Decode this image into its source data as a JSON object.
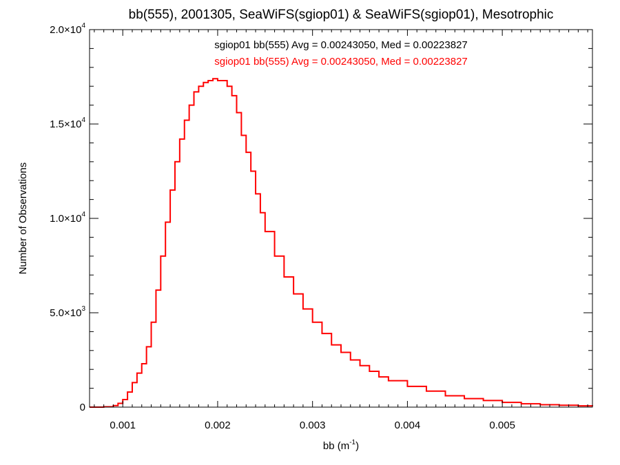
{
  "chart_data": {
    "type": "histogram",
    "title": "bb(555), 2001305, SeaWiFS(sgiop01) & SeaWiFS(sgiop01), Mesotrophic",
    "xlabel": {
      "base": "bb (m",
      "exp": "-1",
      "close": ")"
    },
    "ylabel": "Number of Observations",
    "xlim": [
      0.00065,
      0.00595
    ],
    "ylim": [
      0,
      20000
    ],
    "grid": false,
    "x_ticks": [
      {
        "value": 0.001,
        "label": "0.001"
      },
      {
        "value": 0.002,
        "label": "0.002"
      },
      {
        "value": 0.003,
        "label": "0.003"
      },
      {
        "value": 0.004,
        "label": "0.004"
      },
      {
        "value": 0.005,
        "label": "0.005"
      }
    ],
    "y_ticks": [
      {
        "value": 0,
        "mantissa": "0",
        "exp": ""
      },
      {
        "value": 5000,
        "mantissa": "5.0×10",
        "exp": "3"
      },
      {
        "value": 10000,
        "mantissa": "1.0×10",
        "exp": "4"
      },
      {
        "value": 15000,
        "mantissa": "1.5×10",
        "exp": "4"
      },
      {
        "value": 20000,
        "mantissa": "2.0×10",
        "exp": "4"
      }
    ],
    "legend": [
      {
        "text": "sgiop01 bb(555) Avg = 0.00243050, Med = 0.00223827",
        "color": "#000000"
      },
      {
        "text": "sgiop01 bb(555) Avg = 0.00243050, Med = 0.00223827",
        "color": "#ff0000"
      }
    ],
    "series": [
      {
        "color": "#ff0000",
        "x": [
          0.00065,
          0.0007,
          0.0008,
          0.0009,
          0.00095,
          0.001,
          0.00105,
          0.0011,
          0.00115,
          0.0012,
          0.00125,
          0.0013,
          0.00135,
          0.0014,
          0.00145,
          0.0015,
          0.00155,
          0.0016,
          0.00165,
          0.0017,
          0.00175,
          0.0018,
          0.00185,
          0.0019,
          0.00195,
          0.002,
          0.00205,
          0.0021,
          0.00215,
          0.0022,
          0.00225,
          0.0023,
          0.00235,
          0.0024,
          0.00245,
          0.0025,
          0.0026,
          0.0027,
          0.0028,
          0.0029,
          0.003,
          0.0031,
          0.0032,
          0.0033,
          0.0034,
          0.0035,
          0.0036,
          0.0037,
          0.0038,
          0.004,
          0.0042,
          0.0044,
          0.0046,
          0.0048,
          0.005,
          0.0052,
          0.0054,
          0.0056,
          0.0058,
          0.00595
        ],
        "y": [
          0,
          0,
          20,
          80,
          200,
          400,
          800,
          1300,
          1800,
          2300,
          3200,
          4500,
          6200,
          8000,
          9800,
          11500,
          13000,
          14200,
          15200,
          16000,
          16700,
          17000,
          17200,
          17300,
          17400,
          17300,
          17300,
          17000,
          16500,
          15600,
          14400,
          13500,
          12500,
          11300,
          10300,
          9300,
          8000,
          6900,
          6000,
          5200,
          4500,
          3900,
          3300,
          2900,
          2500,
          2200,
          1900,
          1600,
          1400,
          1100,
          850,
          600,
          450,
          350,
          250,
          180,
          130,
          100,
          70,
          50
        ]
      }
    ]
  }
}
